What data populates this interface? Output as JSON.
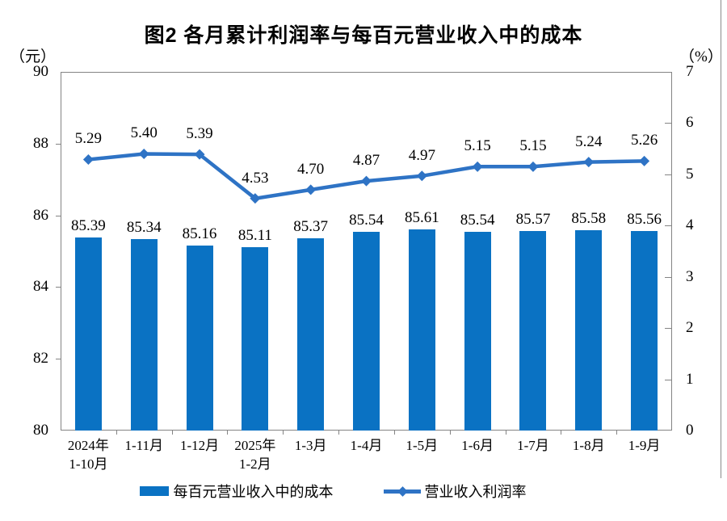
{
  "page": {
    "title": "图2 各月累计利润率与每百元营业收入中的成本"
  },
  "chart_data": {
    "type": "bar+line",
    "title": "图2 各月累计利润率与每百元营业收入中的成本",
    "categories": [
      [
        "2024年",
        "1-10月"
      ],
      [
        "1-11月"
      ],
      [
        "1-12月"
      ],
      [
        "2025年",
        "1-2月"
      ],
      [
        "1-3月"
      ],
      [
        "1-4月"
      ],
      [
        "1-5月"
      ],
      [
        "1-6月"
      ],
      [
        "1-7月"
      ],
      [
        "1-8月"
      ],
      [
        "1-9月"
      ]
    ],
    "series": [
      {
        "name": "每百元营业收入中的成本",
        "type": "bar",
        "axis": "left",
        "color": "#0A72C3",
        "values": [
          85.39,
          85.34,
          85.16,
          85.11,
          85.37,
          85.54,
          85.61,
          85.54,
          85.57,
          85.58,
          85.56
        ]
      },
      {
        "name": "营业收入利润率",
        "type": "line",
        "axis": "right",
        "color": "#2E73C5",
        "values": [
          5.29,
          5.4,
          5.39,
          4.53,
          4.7,
          4.87,
          4.97,
          5.15,
          5.15,
          5.24,
          5.26
        ]
      }
    ],
    "left_axis": {
      "unit": "（元）",
      "min": 80,
      "max": 90,
      "ticks": [
        90,
        88,
        86,
        84,
        82,
        80
      ]
    },
    "right_axis": {
      "unit": "（%）",
      "min": 0,
      "max": 7,
      "ticks": [
        7,
        6,
        5,
        4,
        3,
        2,
        1,
        0
      ]
    },
    "grid": false,
    "data_labels": true,
    "label_decimals": 2,
    "legend_position": "bottom"
  },
  "legend": {
    "items": [
      {
        "label": "每百元营业收入中的成本",
        "swatch": "bar"
      },
      {
        "label": "营业收入利润率",
        "swatch": "line-diamond"
      }
    ]
  },
  "colors": {
    "bar": "#0A72C3",
    "line": "#2E73C5",
    "plot_border": "#848484",
    "tick": "#848484",
    "text": "#000000",
    "frame_line": "#8A8A8A"
  }
}
